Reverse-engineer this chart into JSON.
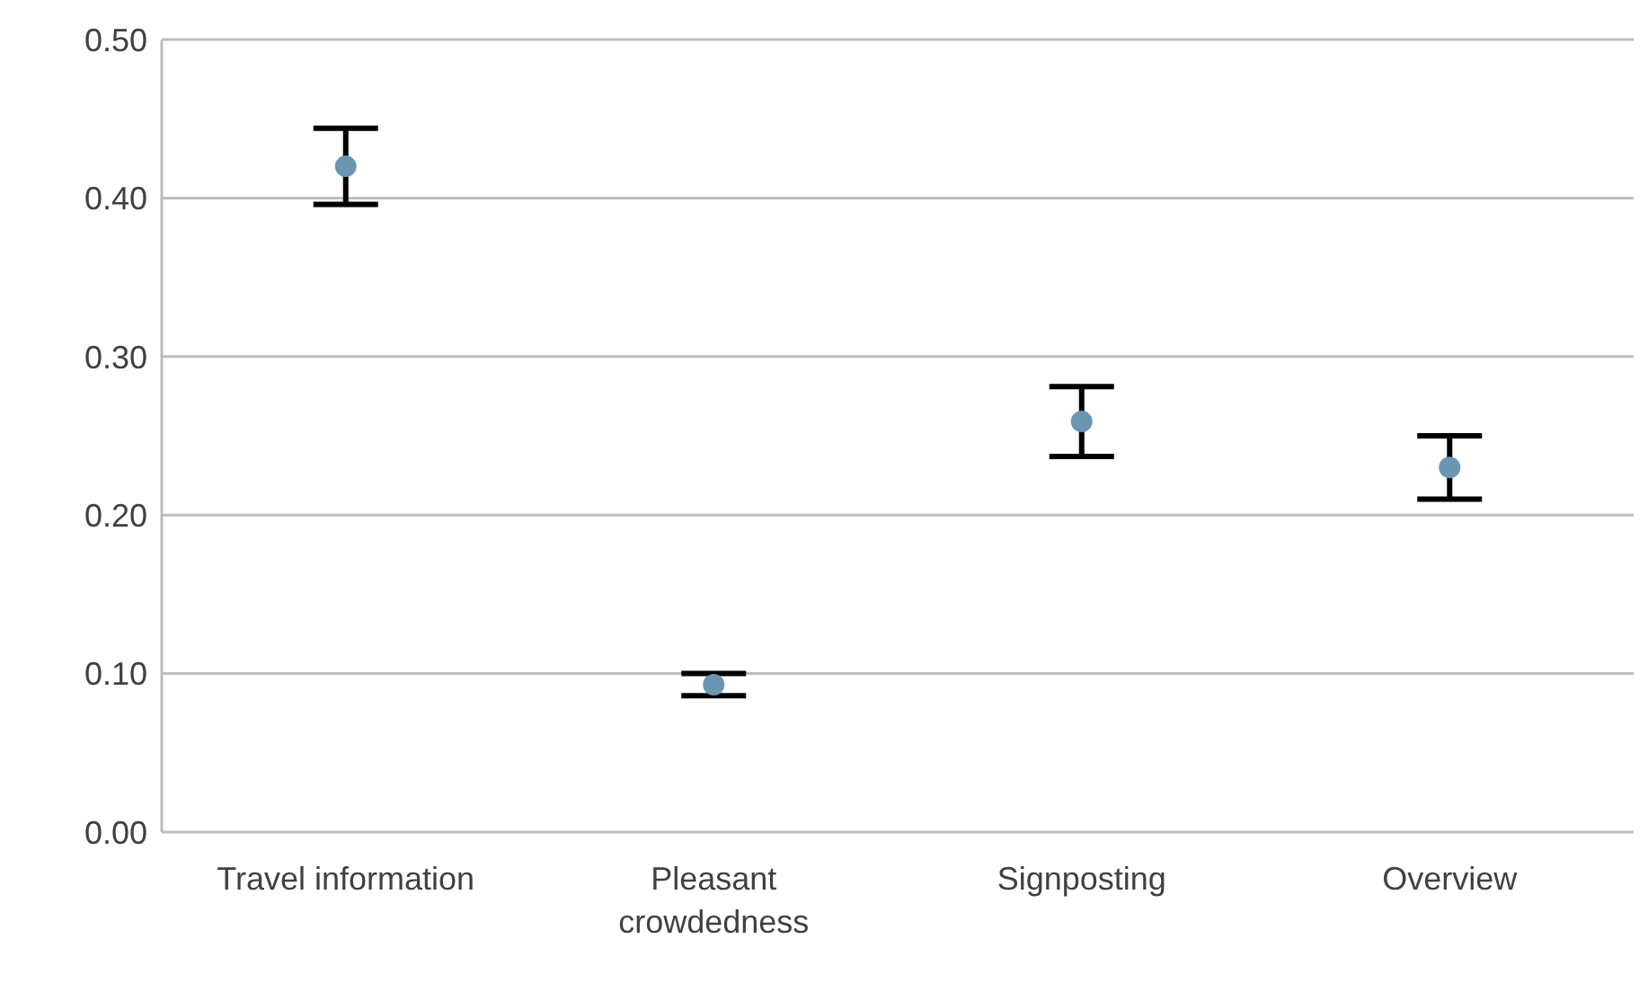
{
  "chart_data": {
    "type": "scatter",
    "categories": [
      "Travel information",
      "Pleasant crowdedness",
      "Signposting",
      "Overview"
    ],
    "series": [
      {
        "color": "#6a96b2",
        "values": [
          0.42,
          0.093,
          0.259,
          0.23
        ],
        "errors": [
          0.024,
          0.007,
          0.022,
          0.02
        ]
      }
    ],
    "ylim": [
      0,
      0.5
    ],
    "yticks": [
      {
        "value": 0,
        "label": "0.00"
      },
      {
        "value": 0.1,
        "label": "0.10"
      },
      {
        "value": 0.2,
        "label": "0.20"
      },
      {
        "value": 0.3,
        "label": "0.30"
      },
      {
        "value": 0.4,
        "label": "0.40"
      },
      {
        "value": 0.5,
        "label": "0.50"
      }
    ],
    "grid": "y",
    "marker": "circle",
    "legend": false
  }
}
